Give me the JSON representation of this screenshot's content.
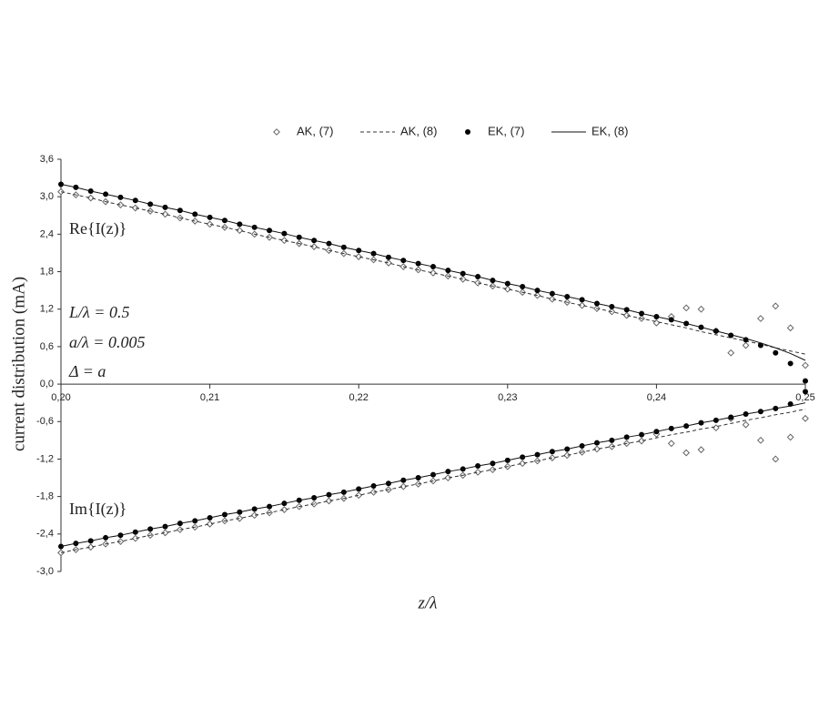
{
  "chart_data": {
    "type": "scatter",
    "xlabel": "z/λ",
    "ylabel": "current distribution (mA)",
    "annotations": [
      "Re{I(z)}",
      "L/λ = 0.5",
      "a/λ = 0.005",
      "Δ = a",
      "Im{I(z)}"
    ],
    "xlim": [
      0.2,
      0.25
    ],
    "xticks": [
      {
        "value": 0.2,
        "label": "0,20"
      },
      {
        "value": 0.21,
        "label": "0,21"
      },
      {
        "value": 0.22,
        "label": "0,22"
      },
      {
        "value": 0.23,
        "label": "0,23"
      },
      {
        "value": 0.24,
        "label": "0,24"
      },
      {
        "value": 0.25,
        "label": "0,25"
      }
    ],
    "ylim": [
      -3.0,
      3.6
    ],
    "yticks": [
      {
        "value": 3.6,
        "label": "3,6"
      },
      {
        "value": 3.0,
        "label": "3,0"
      },
      {
        "value": 2.4,
        "label": "2,4"
      },
      {
        "value": 1.8,
        "label": "1,8"
      },
      {
        "value": 1.2,
        "label": "1,2"
      },
      {
        "value": 0.6,
        "label": "0,6"
      },
      {
        "value": 0,
        "label": "0,0"
      },
      {
        "value": -0.6,
        "label": "-0,6"
      },
      {
        "value": -1.2,
        "label": "-1,2"
      },
      {
        "value": -1.8,
        "label": "-1,8"
      },
      {
        "value": -2.4,
        "label": "-2,4"
      },
      {
        "value": -3.0,
        "label": "-3,0"
      }
    ],
    "x": [
      0.2,
      0.201,
      0.202,
      0.203,
      0.204,
      0.205,
      0.206,
      0.207,
      0.208,
      0.209,
      0.21,
      0.211,
      0.212,
      0.213,
      0.214,
      0.215,
      0.216,
      0.217,
      0.218,
      0.219,
      0.22,
      0.221,
      0.222,
      0.223,
      0.224,
      0.225,
      0.226,
      0.227,
      0.228,
      0.229,
      0.23,
      0.231,
      0.232,
      0.233,
      0.234,
      0.235,
      0.236,
      0.237,
      0.238,
      0.239,
      0.24,
      0.241,
      0.242,
      0.243,
      0.244,
      0.245,
      0.246,
      0.247,
      0.248,
      0.249,
      0.25
    ],
    "series": [
      {
        "name": "AK, (7)",
        "color": "#666666",
        "marker": "open-diamond",
        "line": "none",
        "re": [
          3.08,
          3.03,
          2.98,
          2.92,
          2.87,
          2.82,
          2.77,
          2.72,
          2.66,
          2.61,
          2.56,
          2.51,
          2.46,
          2.4,
          2.35,
          2.3,
          2.25,
          2.2,
          2.14,
          2.09,
          2.04,
          1.99,
          1.94,
          1.88,
          1.83,
          1.78,
          1.73,
          1.68,
          1.62,
          1.57,
          1.52,
          1.47,
          1.42,
          1.36,
          1.31,
          1.26,
          1.21,
          1.16,
          1.1,
          1.05,
          0.98,
          1.08,
          1.22,
          1.2,
          0.85,
          0.5,
          0.62,
          1.05,
          1.25,
          0.9,
          0.3
        ],
        "im": [
          -2.7,
          -2.65,
          -2.61,
          -2.56,
          -2.52,
          -2.47,
          -2.42,
          -2.38,
          -2.33,
          -2.29,
          -2.24,
          -2.19,
          -2.15,
          -2.1,
          -2.06,
          -2.01,
          -1.96,
          -1.92,
          -1.87,
          -1.83,
          -1.78,
          -1.73,
          -1.69,
          -1.64,
          -1.6,
          -1.55,
          -1.5,
          -1.46,
          -1.41,
          -1.37,
          -1.32,
          -1.27,
          -1.23,
          -1.18,
          -1.14,
          -1.09,
          -1.04,
          -1.0,
          -0.95,
          -0.91,
          -0.8,
          -0.95,
          -1.1,
          -1.05,
          -0.7,
          -0.55,
          -0.65,
          -0.9,
          -1.2,
          -0.85,
          -0.55
        ]
      },
      {
        "name": "AK, (8)",
        "color": "#333333",
        "marker": "none",
        "line": "dashed",
        "re": [
          3.08,
          3.03,
          2.98,
          2.92,
          2.87,
          2.82,
          2.77,
          2.72,
          2.66,
          2.61,
          2.56,
          2.51,
          2.46,
          2.4,
          2.35,
          2.3,
          2.25,
          2.2,
          2.14,
          2.09,
          2.04,
          1.99,
          1.94,
          1.88,
          1.83,
          1.78,
          1.73,
          1.68,
          1.62,
          1.57,
          1.52,
          1.47,
          1.42,
          1.36,
          1.31,
          1.26,
          1.21,
          1.16,
          1.1,
          1.05,
          1.0,
          0.95,
          0.9,
          0.84,
          0.79,
          0.74,
          0.69,
          0.64,
          0.58,
          0.53,
          0.48
        ],
        "im": [
          -2.7,
          -2.65,
          -2.61,
          -2.56,
          -2.52,
          -2.47,
          -2.42,
          -2.38,
          -2.33,
          -2.29,
          -2.24,
          -2.19,
          -2.15,
          -2.1,
          -2.06,
          -2.01,
          -1.96,
          -1.92,
          -1.87,
          -1.83,
          -1.78,
          -1.73,
          -1.69,
          -1.64,
          -1.6,
          -1.55,
          -1.5,
          -1.46,
          -1.41,
          -1.37,
          -1.32,
          -1.27,
          -1.23,
          -1.18,
          -1.14,
          -1.09,
          -1.04,
          -1.0,
          -0.95,
          -0.91,
          -0.86,
          -0.81,
          -0.77,
          -0.72,
          -0.68,
          -0.63,
          -0.58,
          -0.54,
          -0.49,
          -0.45,
          -0.4
        ]
      },
      {
        "name": "EK, (7)",
        "color": "#000000",
        "marker": "dot",
        "line": "none",
        "re": [
          3.2,
          3.15,
          3.09,
          3.04,
          2.99,
          2.94,
          2.88,
          2.83,
          2.78,
          2.72,
          2.67,
          2.62,
          2.56,
          2.51,
          2.46,
          2.41,
          2.35,
          2.3,
          2.25,
          2.19,
          2.14,
          2.09,
          2.03,
          1.98,
          1.93,
          1.88,
          1.82,
          1.77,
          1.72,
          1.66,
          1.61,
          1.56,
          1.5,
          1.45,
          1.4,
          1.35,
          1.29,
          1.24,
          1.19,
          1.13,
          1.08,
          1.03,
          0.97,
          0.91,
          0.85,
          0.78,
          0.71,
          0.62,
          0.5,
          0.33,
          0.05
        ],
        "im": [
          -2.6,
          -2.55,
          -2.51,
          -2.46,
          -2.42,
          -2.37,
          -2.32,
          -2.28,
          -2.23,
          -2.19,
          -2.14,
          -2.09,
          -2.05,
          -2.0,
          -1.96,
          -1.91,
          -1.86,
          -1.82,
          -1.77,
          -1.73,
          -1.68,
          -1.63,
          -1.59,
          -1.54,
          -1.5,
          -1.45,
          -1.4,
          -1.36,
          -1.31,
          -1.27,
          -1.22,
          -1.17,
          -1.13,
          -1.08,
          -1.04,
          -0.99,
          -0.94,
          -0.9,
          -0.85,
          -0.81,
          -0.76,
          -0.71,
          -0.67,
          -0.62,
          -0.58,
          -0.53,
          -0.48,
          -0.44,
          -0.39,
          -0.32,
          -0.12
        ]
      },
      {
        "name": "EK, (8)",
        "color": "#111111",
        "marker": "none",
        "line": "solid",
        "re": [
          3.2,
          3.15,
          3.09,
          3.04,
          2.99,
          2.94,
          2.88,
          2.83,
          2.78,
          2.72,
          2.67,
          2.62,
          2.56,
          2.51,
          2.46,
          2.41,
          2.35,
          2.3,
          2.25,
          2.19,
          2.14,
          2.09,
          2.03,
          1.98,
          1.93,
          1.88,
          1.82,
          1.77,
          1.72,
          1.66,
          1.61,
          1.56,
          1.5,
          1.45,
          1.4,
          1.35,
          1.29,
          1.24,
          1.19,
          1.13,
          1.08,
          1.03,
          0.97,
          0.91,
          0.85,
          0.79,
          0.73,
          0.66,
          0.58,
          0.49,
          0.38
        ],
        "im": [
          -2.6,
          -2.55,
          -2.51,
          -2.46,
          -2.42,
          -2.37,
          -2.32,
          -2.28,
          -2.23,
          -2.19,
          -2.14,
          -2.09,
          -2.05,
          -2.0,
          -1.96,
          -1.91,
          -1.86,
          -1.82,
          -1.77,
          -1.73,
          -1.68,
          -1.63,
          -1.59,
          -1.54,
          -1.5,
          -1.45,
          -1.4,
          -1.36,
          -1.31,
          -1.27,
          -1.22,
          -1.17,
          -1.13,
          -1.08,
          -1.04,
          -0.99,
          -0.94,
          -0.9,
          -0.85,
          -0.81,
          -0.76,
          -0.71,
          -0.67,
          -0.62,
          -0.58,
          -0.53,
          -0.48,
          -0.44,
          -0.39,
          -0.35,
          -0.3
        ]
      }
    ]
  }
}
